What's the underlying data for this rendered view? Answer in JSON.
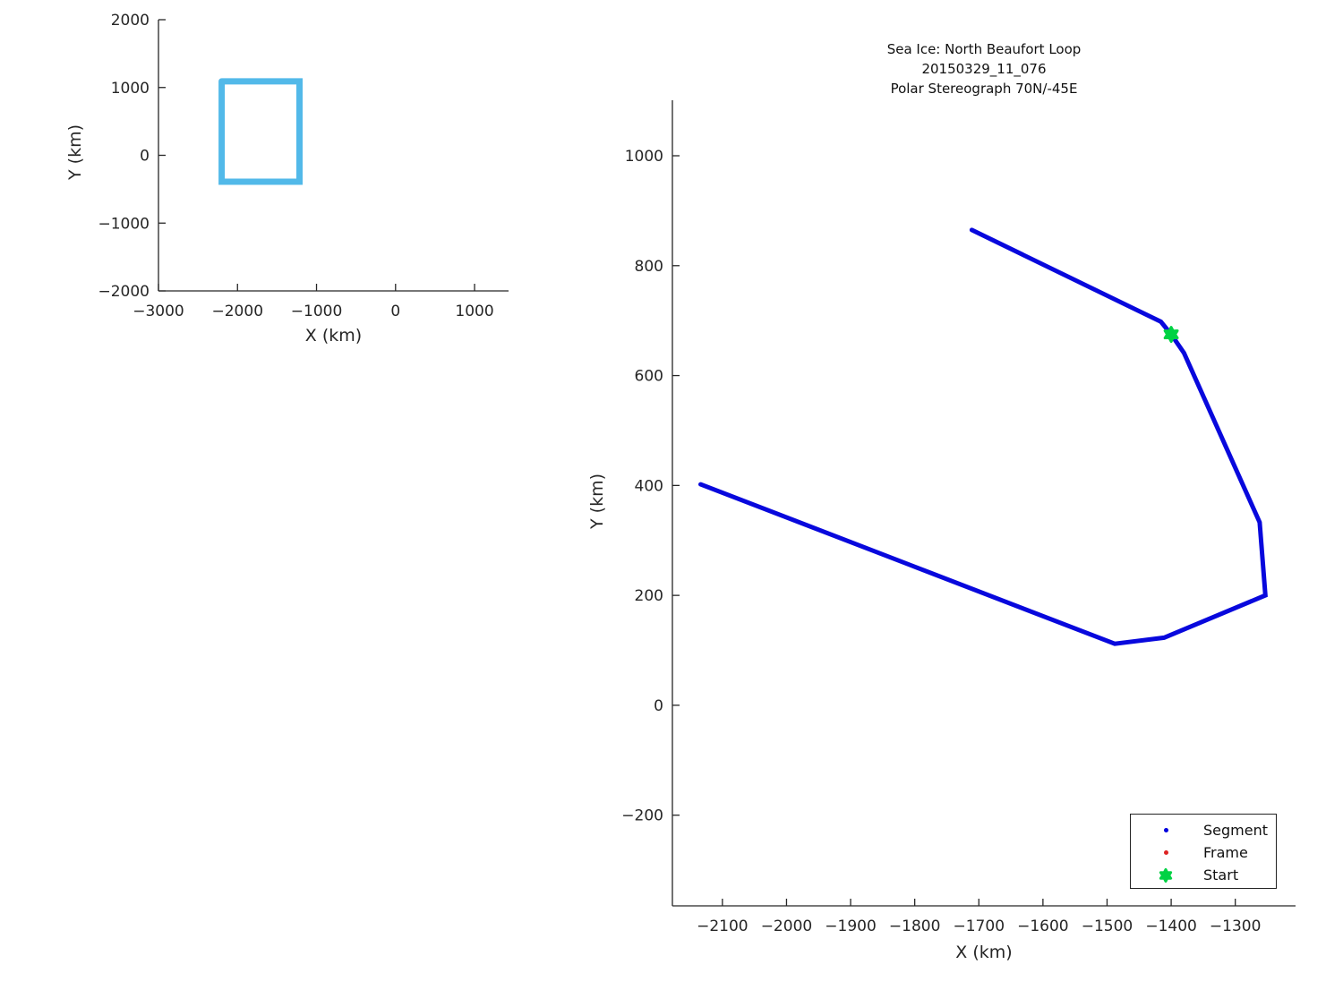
{
  "chart_data": [
    {
      "type": "line",
      "name": "loop-overview",
      "xlabel": "X (km)",
      "ylabel": "Y (km)",
      "xlim": [
        -3000,
        1430
      ],
      "ylim": [
        -2000,
        2000
      ],
      "x_ticks": [
        -3000,
        -2000,
        -1000,
        0,
        1000
      ],
      "y_ticks": [
        -2000,
        -1000,
        0,
        1000,
        2000
      ],
      "grid": false,
      "series": [
        {
          "name": "loop-outline",
          "color": "#52B9E9",
          "line_width": 7,
          "points": [
            [
              -2200,
              1090
            ],
            [
              -1215,
              1090
            ],
            [
              -1215,
              -390
            ],
            [
              -2200,
              -390
            ],
            [
              -2200,
              1090
            ]
          ]
        }
      ]
    },
    {
      "type": "line",
      "name": "segment-detail",
      "title": "Sea Ice: North Beaufort Loop",
      "subtitle": "20150329_11_076",
      "subtitle2": "Polar Stereograph 70N/-45E",
      "xlabel": "X (km)",
      "ylabel": "Y (km)",
      "xlim": [
        -2178,
        -1206
      ],
      "ylim": [
        -365,
        1101
      ],
      "x_ticks": [
        -2100,
        -2000,
        -1900,
        -1800,
        -1700,
        -1600,
        -1500,
        -1400,
        -1300
      ],
      "y_ticks": [
        -200,
        0,
        200,
        400,
        600,
        800,
        1000
      ],
      "grid": false,
      "series": [
        {
          "name": "Segment",
          "color": "#0808DD",
          "line_width": 5,
          "points": [
            [
              -1711,
              865
            ],
            [
              -1416,
              698
            ],
            [
              -1400,
              675
            ],
            [
              -1380,
              641
            ],
            [
              -1262,
              333
            ],
            [
              -1253,
              200
            ],
            [
              -1411,
              123
            ],
            [
              -1488,
              112
            ],
            [
              -2134,
              402
            ]
          ]
        }
      ],
      "start_marker": {
        "point": [
          -1400,
          675
        ],
        "color": "#00D244"
      },
      "legend": {
        "position": "lower right",
        "items": [
          {
            "label": "Segment",
            "marker": "dot",
            "color": "#0000DD",
            "size": 5
          },
          {
            "label": "Frame",
            "marker": "dot",
            "color": "#DD2222",
            "size": 5
          },
          {
            "label": "Start",
            "marker": "star",
            "color": "#00D244",
            "size": 15
          }
        ]
      }
    }
  ],
  "colors": {
    "axis": "#262626",
    "segment_line": "#0808DD",
    "loop_outline": "#52B9E9",
    "start_marker": "#00D244",
    "frame_marker": "#DD2222"
  }
}
